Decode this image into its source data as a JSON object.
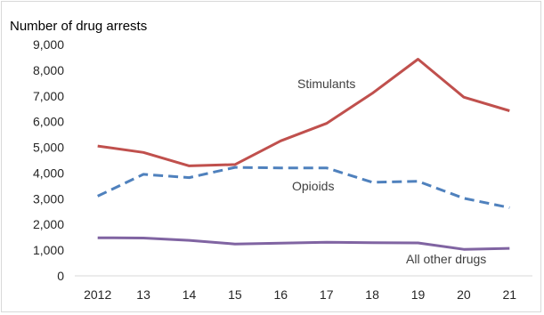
{
  "chart_data": {
    "type": "line",
    "ylabel": "Number of drug arrests",
    "xlabel": "",
    "categories": [
      "2012",
      "13",
      "14",
      "15",
      "16",
      "17",
      "18",
      "19",
      "20",
      "21"
    ],
    "ylim": [
      0,
      9000
    ],
    "yticks": [
      "0",
      "1,000",
      "2,000",
      "3,000",
      "4,000",
      "5,000",
      "6,000",
      "7,000",
      "8,000",
      "9,000"
    ],
    "grid": false,
    "series": [
      {
        "name": "Stimulants",
        "color": "#c0504d",
        "style": "solid",
        "values": [
          5050,
          4800,
          4280,
          4330,
          5250,
          5930,
          7100,
          8430,
          6950,
          6420
        ]
      },
      {
        "name": "Opioids",
        "color": "#4f81bd",
        "style": "dashed",
        "values": [
          3100,
          3950,
          3820,
          4220,
          4200,
          4200,
          3640,
          3680,
          3020,
          2650
        ]
      },
      {
        "name": "All other drugs",
        "color": "#8064a2",
        "style": "solid",
        "values": [
          1480,
          1470,
          1380,
          1240,
          1270,
          1310,
          1290,
          1280,
          1030,
          1070
        ]
      }
    ]
  }
}
